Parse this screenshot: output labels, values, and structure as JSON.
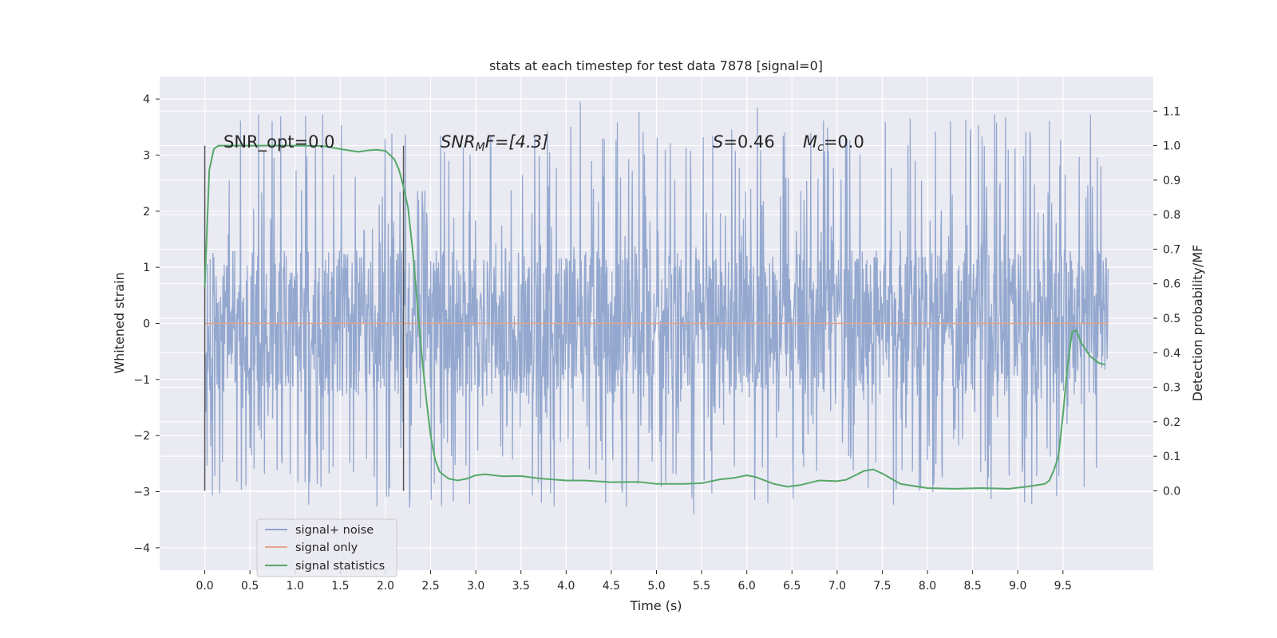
{
  "chart_data": {
    "type": "line",
    "title": "stats at each timestep for test data 7878 [signal=0]",
    "xlabel": "Time (s)",
    "ylabel": "Whitened strain",
    "ylabel_right": "Detection probability/MF",
    "xlim": [
      -0.5,
      10.5
    ],
    "ylim": [
      -4.4,
      4.4
    ],
    "ylim_right": [
      -0.23,
      1.2
    ],
    "xticks": [
      "0.0",
      "0.5",
      "1.0",
      "1.5",
      "2.0",
      "2.5",
      "3.0",
      "3.5",
      "4.0",
      "4.5",
      "5.0",
      "5.5",
      "6.0",
      "6.5",
      "7.0",
      "7.5",
      "8.0",
      "8.5",
      "9.0",
      "9.5"
    ],
    "yticks": [
      "4",
      "3",
      "2",
      "1",
      "0",
      "−1",
      "−2",
      "−3",
      "−4"
    ],
    "yticks_right": [
      "1.1",
      "1.0",
      "0.9",
      "0.8",
      "0.7",
      "0.6",
      "0.5",
      "0.4",
      "0.3",
      "0.2",
      "0.1",
      "0.0"
    ],
    "grid": true,
    "legend": {
      "position": "lower-left",
      "entries": [
        "signal+ noise",
        "signal only",
        "signal statistics"
      ]
    },
    "annotations": {
      "snr_opt": "SNR_opt=0.0",
      "snr_mf_main": "SNR",
      "snr_mf_sub": "M",
      "snr_mf_tail": "F=[4.3]",
      "s_main": "S",
      "s_tail": "=0.46",
      "mc_main": "M",
      "mc_sub": "c",
      "mc_tail": "=0.0"
    },
    "vertical_markers": [
      0.0,
      2.2
    ],
    "series": [
      {
        "name": "signal+ noise",
        "color": "#8fa4cc",
        "axis": "left",
        "t_range": [
          0.0,
          10.0
        ],
        "envelope_upper_typical": 1.3,
        "envelope_lower_typical": -1.25,
        "spike_max": 4.05,
        "spike_min": -3.7
      },
      {
        "name": "signal only",
        "color": "#e4a58b",
        "axis": "left",
        "t_range": [
          0.0,
          10.0
        ],
        "value": 0.0
      },
      {
        "name": "signal statistics",
        "color": "#55a868",
        "axis": "right",
        "x": [
          0.0,
          0.05,
          0.1,
          0.15,
          0.2,
          0.3,
          0.5,
          1.0,
          1.3,
          1.5,
          1.7,
          1.8,
          1.9,
          2.0,
          2.1,
          2.15,
          2.2,
          2.25,
          2.3,
          2.35,
          2.4,
          2.45,
          2.5,
          2.55,
          2.6,
          2.7,
          2.8,
          2.9,
          3.0,
          3.1,
          3.2,
          3.3,
          3.5,
          3.7,
          4.0,
          4.2,
          4.5,
          4.8,
          5.0,
          5.3,
          5.5,
          5.7,
          5.85,
          6.0,
          6.1,
          6.3,
          6.45,
          6.6,
          6.8,
          7.0,
          7.1,
          7.2,
          7.3,
          7.4,
          7.5,
          7.7,
          8.0,
          8.3,
          8.6,
          8.9,
          9.1,
          9.3,
          9.35,
          9.4,
          9.45,
          9.5,
          9.55,
          9.6,
          9.65,
          9.7,
          9.8,
          9.9,
          9.97
        ],
        "y": [
          0.59,
          0.93,
          0.99,
          1.0,
          1.0,
          1.0,
          1.0,
          1.0,
          0.999,
          0.99,
          0.982,
          0.986,
          0.988,
          0.985,
          0.96,
          0.93,
          0.88,
          0.82,
          0.7,
          0.55,
          0.4,
          0.27,
          0.16,
          0.09,
          0.055,
          0.035,
          0.03,
          0.035,
          0.045,
          0.048,
          0.045,
          0.042,
          0.043,
          0.036,
          0.03,
          0.03,
          0.025,
          0.026,
          0.02,
          0.02,
          0.022,
          0.033,
          0.037,
          0.045,
          0.04,
          0.02,
          0.012,
          0.017,
          0.03,
          0.028,
          0.032,
          0.045,
          0.058,
          0.062,
          0.05,
          0.02,
          0.008,
          0.006,
          0.008,
          0.006,
          0.012,
          0.02,
          0.03,
          0.06,
          0.1,
          0.22,
          0.36,
          0.46,
          0.465,
          0.43,
          0.39,
          0.37,
          0.365
        ]
      }
    ]
  }
}
